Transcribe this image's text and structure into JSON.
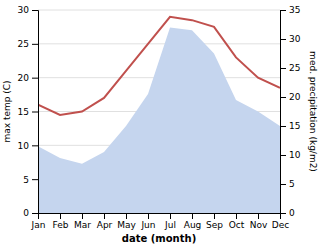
{
  "chart_data": {
    "type": "line",
    "categories": [
      "Jan",
      "Feb",
      "Mar",
      "Apr",
      "May",
      "Jun",
      "Jul",
      "Aug",
      "Sep",
      "Oct",
      "Nov",
      "Dec"
    ],
    "series": [
      {
        "type": "area",
        "axis": "y2",
        "color": "#c5d5ee",
        "values": [
          11.5,
          9.5,
          8.5,
          10.5,
          15.0,
          20.5,
          32.0,
          31.5,
          27.5,
          19.5,
          17.5,
          15.0
        ]
      },
      {
        "type": "line",
        "color": "#c0504d",
        "values": [
          16.0,
          14.5,
          15.0,
          17.0,
          21.0,
          25.0,
          29.0,
          28.5,
          27.5,
          23.0,
          20.0,
          18.5
        ]
      }
    ],
    "xlabel": "date (month)",
    "ylabel": "max temp (C)",
    "y2label": "med. precipitation (kg/m2)",
    "ylim": [
      0,
      30
    ],
    "yticks": [
      0,
      5,
      10,
      15,
      20,
      25,
      30
    ],
    "y2lim": [
      0,
      35
    ],
    "y2ticks": [
      0,
      5,
      10,
      15,
      20,
      25,
      30,
      35
    ],
    "grid": true
  }
}
